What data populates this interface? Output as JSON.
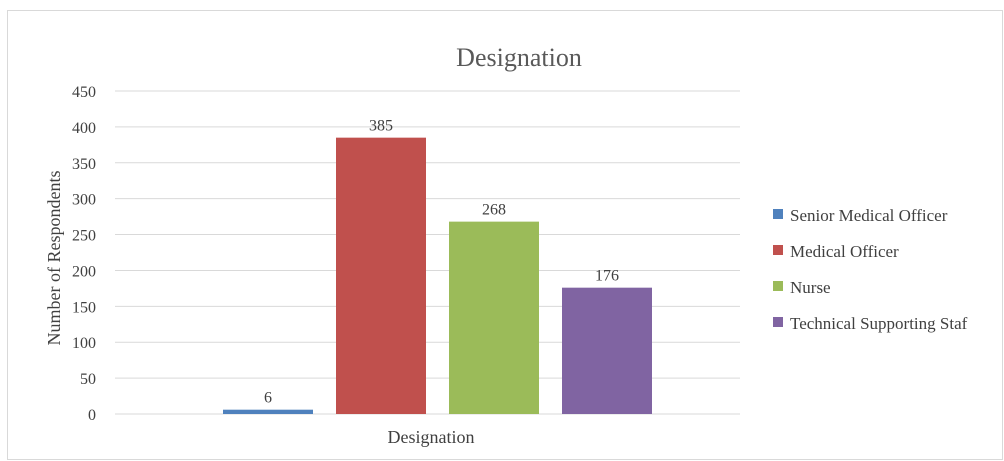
{
  "chart_data": {
    "type": "bar",
    "title": "Designation",
    "xlabel": "Designation",
    "ylabel": "Number of Respondents",
    "ylim": [
      0,
      450
    ],
    "yticks": [
      0,
      50,
      100,
      150,
      200,
      250,
      300,
      350,
      400,
      450
    ],
    "grid": true,
    "legend_position": "right",
    "categories": [
      "Designation"
    ],
    "series": [
      {
        "name": "Senior Medical Officer",
        "values": [
          6
        ],
        "color": "#4f81bd"
      },
      {
        "name": "Medical Officer",
        "values": [
          385
        ],
        "color": "#c0504d"
      },
      {
        "name": "Nurse",
        "values": [
          268
        ],
        "color": "#9bbb59"
      },
      {
        "name": "Technical Supporting Staf",
        "values": [
          176
        ],
        "color": "#8064a2"
      }
    ]
  }
}
